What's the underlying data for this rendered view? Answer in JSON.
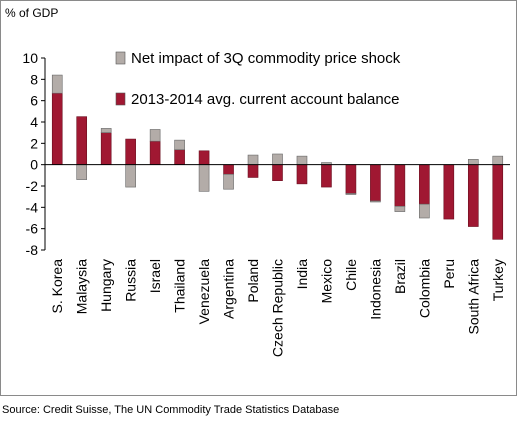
{
  "chart_data": {
    "type": "bar",
    "ylabel": "% of GDP",
    "ylim": [
      -8,
      10
    ],
    "yticks": [
      10,
      8,
      6,
      4,
      2,
      0,
      -2,
      -4,
      -6,
      -8
    ],
    "categories": [
      "S. Korea",
      "Malaysia",
      "Hungary",
      "Russia",
      "Israel",
      "Thailand",
      "Venezuela",
      "Argentina",
      "Poland",
      "Czech Republic",
      "India",
      "Mexico",
      "Chile",
      "Indonesia",
      "Brazil",
      "Colombia",
      "Peru",
      "South Africa",
      "Turkey"
    ],
    "series": [
      {
        "name": "2013-2014 avg. current account balance",
        "color": "#a01832",
        "values": [
          6.7,
          4.5,
          3.0,
          2.4,
          2.2,
          1.4,
          1.3,
          -0.9,
          -1.2,
          -1.5,
          -1.8,
          -2.1,
          -2.7,
          -3.4,
          -3.9,
          -3.7,
          -5.1,
          -5.8,
          -7.0
        ]
      },
      {
        "name": "Net impact of 3Q commodity price shock",
        "color": "#b3aca8",
        "values": [
          1.7,
          -1.4,
          0.4,
          -2.1,
          1.1,
          0.9,
          -2.5,
          -1.4,
          0.9,
          1.0,
          0.8,
          0.2,
          -0.1,
          -0.1,
          -0.5,
          -1.3,
          0.0,
          0.5,
          0.8
        ]
      }
    ],
    "legend_position": "top-right",
    "grid": false
  },
  "source": "Source: Credit Suisse, The UN Commodity Trade Statistics Database"
}
